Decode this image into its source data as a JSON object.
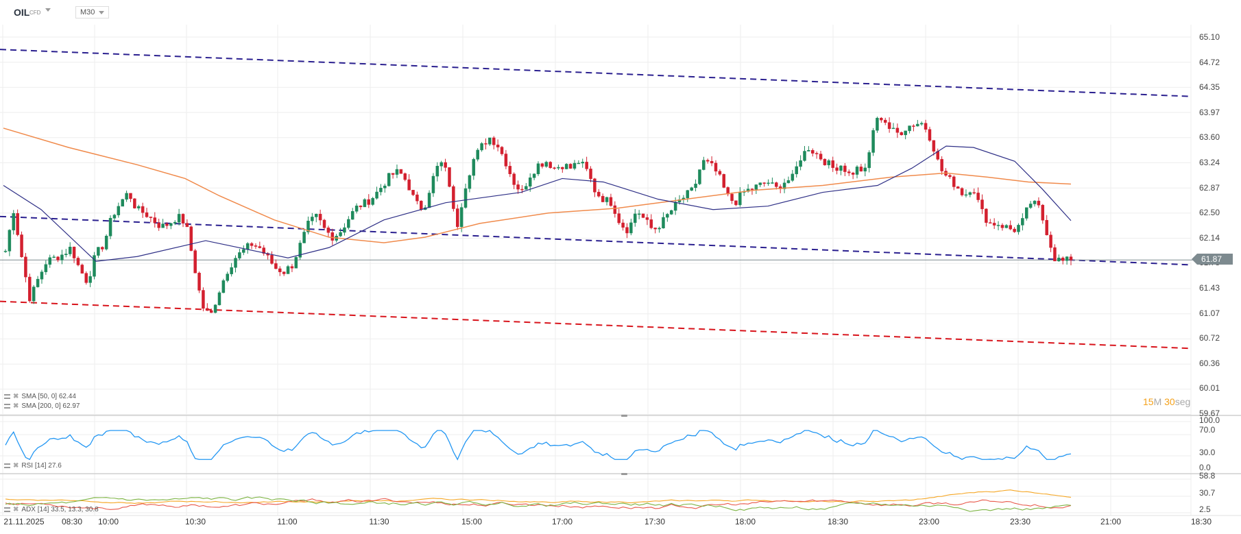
{
  "header": {
    "symbol": "OIL",
    "symbol_type": "CFD",
    "timeframe": "M30"
  },
  "price_axis": {
    "labels": [
      "65.10",
      "64.72",
      "64.35",
      "63.97",
      "63.60",
      "63.24",
      "62.87",
      "62.50",
      "62.14",
      "61.78",
      "61.43",
      "61.07",
      "60.72",
      "60.36",
      "60.01",
      "59.67"
    ],
    "current_price": "61.87"
  },
  "rsi_axis": {
    "labels": [
      "100.0",
      "70.0",
      "30.0",
      "0.0"
    ]
  },
  "adx_axis": {
    "labels": [
      "58.8",
      "30.7",
      "2.5"
    ]
  },
  "time_axis": {
    "labels": [
      "21.11.2025",
      "08:30",
      "10:00",
      "10:30",
      "11:00",
      "11:30",
      "15:00",
      "17:00",
      "17:30",
      "18:00",
      "18:30",
      "23:00",
      "23:30",
      "21:00",
      "18:30"
    ]
  },
  "indicators": {
    "sma50": {
      "label": "SMA [50, 0] 62.44",
      "color": "#2e2f86"
    },
    "sma200": {
      "label": "SMA [200, 0] 62.97",
      "color": "#f08a4b"
    },
    "rsi": {
      "label": "RSI [14] 27.6",
      "color": "#2196f3"
    },
    "adx": {
      "label": "ADX [14] 33.5, 13.3, 30.8",
      "colors": [
        "#f5a623",
        "#e8584a",
        "#7cb342"
      ]
    }
  },
  "countdown": {
    "minutes": "15",
    "minutes_unit": "M",
    "seconds": "30",
    "seconds_unit": "seg"
  },
  "colors": {
    "up": "#1e8a5c",
    "down": "#d3202f",
    "trend_blue": "#2a1f8f",
    "trend_red": "#d8131b",
    "grid": "#eeeeee",
    "price_line": "#7d8a8f"
  },
  "chart_data": {
    "type": "candlestick",
    "title": "OIL CFD M30",
    "ylim": [
      59.67,
      65.1
    ],
    "price_path": [
      62.0,
      62.6,
      61.9,
      61.3,
      61.6,
      61.85,
      61.9,
      61.95,
      62.05,
      61.75,
      61.55,
      61.95,
      62.1,
      62.5,
      62.7,
      62.85,
      62.6,
      62.55,
      62.45,
      62.35,
      62.4,
      62.5,
      62.4,
      61.8,
      61.2,
      61.05,
      61.4,
      61.7,
      61.9,
      62.0,
      62.1,
      62.05,
      61.9,
      61.75,
      61.7,
      61.8,
      62.1,
      62.4,
      62.5,
      62.3,
      62.2,
      62.3,
      62.5,
      62.65,
      62.7,
      62.8,
      62.95,
      63.1,
      63.15,
      63.0,
      62.7,
      62.6,
      63.0,
      63.3,
      63.1,
      62.3,
      62.9,
      63.3,
      63.5,
      63.65,
      63.55,
      63.3,
      63.0,
      62.85,
      63.1,
      63.25,
      63.3,
      63.2,
      63.25,
      63.2,
      63.3,
      63.15,
      62.85,
      62.75,
      62.7,
      62.4,
      62.3,
      62.6,
      62.45,
      62.3,
      62.4,
      62.55,
      62.7,
      62.8,
      62.9,
      63.3,
      63.25,
      63.1,
      62.8,
      62.7,
      62.85,
      62.9,
      62.95,
      63.0,
      62.9,
      63.0,
      63.05,
      63.35,
      63.5,
      63.4,
      63.3,
      63.2,
      63.25,
      63.1,
      63.2,
      63.15,
      63.85,
      63.95,
      63.75,
      63.7,
      63.8,
      63.85,
      63.85,
      63.6,
      63.2,
      63.05,
      62.95,
      62.8,
      62.95,
      62.6,
      62.4,
      62.4,
      62.35,
      62.3,
      62.4,
      62.7,
      62.65,
      62.3,
      61.9,
      61.85,
      61.87
    ],
    "sma50": [
      [
        5,
        62.95
      ],
      [
        60,
        62.6
      ],
      [
        140,
        61.85
      ],
      [
        200,
        61.92
      ],
      [
        300,
        62.15
      ],
      [
        420,
        61.9
      ],
      [
        480,
        62.05
      ],
      [
        560,
        62.45
      ],
      [
        650,
        62.7
      ],
      [
        760,
        62.85
      ],
      [
        820,
        63.05
      ],
      [
        880,
        63.0
      ],
      [
        960,
        62.75
      ],
      [
        1040,
        62.6
      ],
      [
        1120,
        62.65
      ],
      [
        1200,
        62.85
      ],
      [
        1280,
        62.95
      ],
      [
        1330,
        63.2
      ],
      [
        1380,
        63.52
      ],
      [
        1420,
        63.5
      ],
      [
        1480,
        63.3
      ],
      [
        1520,
        62.9
      ],
      [
        1562,
        62.44
      ]
    ],
    "sma200": [
      [
        5,
        63.78
      ],
      [
        100,
        63.5
      ],
      [
        200,
        63.25
      ],
      [
        270,
        63.05
      ],
      [
        320,
        62.8
      ],
      [
        400,
        62.45
      ],
      [
        480,
        62.2
      ],
      [
        560,
        62.12
      ],
      [
        620,
        62.2
      ],
      [
        700,
        62.4
      ],
      [
        800,
        62.55
      ],
      [
        900,
        62.62
      ],
      [
        1000,
        62.75
      ],
      [
        1100,
        62.88
      ],
      [
        1200,
        62.95
      ],
      [
        1300,
        63.07
      ],
      [
        1380,
        63.13
      ],
      [
        1440,
        63.07
      ],
      [
        1500,
        63.0
      ],
      [
        1562,
        62.97
      ]
    ],
    "trendlines": [
      {
        "color": "blue",
        "from": [
          0,
          64.92
        ],
        "to": [
          1735,
          64.24
        ]
      },
      {
        "color": "blue",
        "from": [
          0,
          62.5
        ],
        "to": [
          1735,
          61.8
        ]
      },
      {
        "color": "red",
        "from": [
          0,
          61.27
        ],
        "to": [
          1735,
          60.59
        ]
      }
    ],
    "rsi_last": 27.6,
    "adx_last": [
      33.5,
      13.3,
      30.8
    ]
  }
}
